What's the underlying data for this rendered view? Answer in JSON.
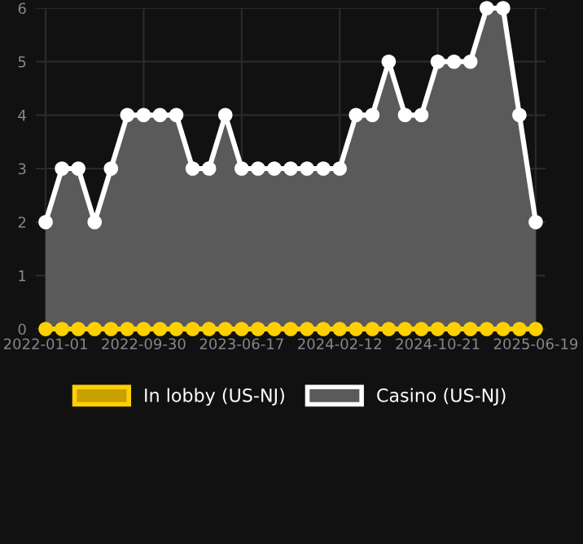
{
  "chart_data": {
    "type": "area",
    "categories": [
      "2022-01-01",
      null,
      null,
      null,
      null,
      null,
      "2022-09-30",
      null,
      null,
      null,
      null,
      null,
      "2023-06-17",
      null,
      null,
      null,
      null,
      null,
      "2024-02-12",
      null,
      null,
      null,
      null,
      null,
      "2024-10-21",
      null,
      null,
      null,
      null,
      null,
      "2025-06-19"
    ],
    "series": [
      {
        "name": "In lobby (US-NJ)",
        "color": "#ffd000",
        "type": "line",
        "values": [
          0,
          0,
          0,
          0,
          0,
          0,
          0,
          0,
          0,
          0,
          0,
          0,
          0,
          0,
          0,
          0,
          0,
          0,
          0,
          0,
          0,
          0,
          0,
          0,
          0,
          0,
          0,
          0,
          0,
          0,
          0
        ]
      },
      {
        "name": "Casino (US-NJ)",
        "color": "#ffffff",
        "values": [
          2,
          3,
          3,
          2,
          3,
          4,
          4,
          4,
          4,
          3,
          3,
          4,
          3,
          3,
          3,
          3,
          3,
          3,
          3,
          4,
          4,
          5,
          4,
          4,
          5,
          5,
          5,
          6,
          6,
          4,
          2
        ]
      }
    ],
    "ylim": [
      0,
      6
    ],
    "yticks": [
      0,
      1,
      2,
      3,
      4,
      5,
      6
    ],
    "grid": true,
    "legend": "bottom",
    "marker": "circle",
    "line_style": "solid"
  }
}
